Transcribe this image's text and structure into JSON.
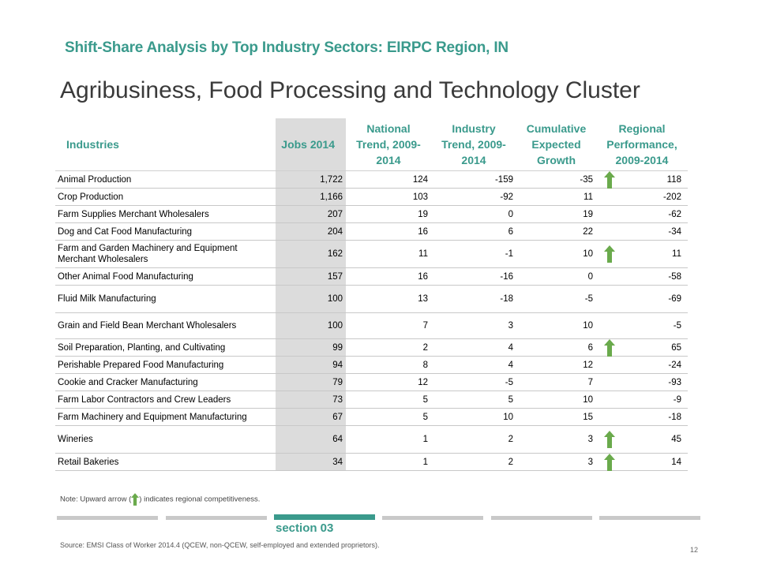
{
  "header": {
    "subtitle": "Shift-Share Analysis by Top Industry Sectors: EIRPC Region, IN",
    "title": "Agribusiness, Food Processing and Technology Cluster"
  },
  "table": {
    "columns": [
      "Industries",
      "Jobs 2014",
      "National Trend, 2009-2014",
      "Industry Trend, 2009-2014",
      "Cumulative Expected Growth",
      "Regional Performance, 2009-2014"
    ],
    "rows": [
      {
        "name": "Animal Production",
        "jobs": "1,722",
        "national": "124",
        "industry": "-159",
        "cumulative": "-35",
        "regional": "118",
        "up": true
      },
      {
        "name": "Crop Production",
        "jobs": "1,166",
        "national": "103",
        "industry": "-92",
        "cumulative": "11",
        "regional": "-202",
        "up": false
      },
      {
        "name": "Farm Supplies Merchant Wholesalers",
        "jobs": "207",
        "national": "19",
        "industry": "0",
        "cumulative": "19",
        "regional": "-62",
        "up": false
      },
      {
        "name": "Dog and Cat Food Manufacturing",
        "jobs": "204",
        "national": "16",
        "industry": "6",
        "cumulative": "22",
        "regional": "-34",
        "up": false
      },
      {
        "name": "Farm and Garden Machinery and Equipment Merchant Wholesalers",
        "jobs": "162",
        "national": "11",
        "industry": "-1",
        "cumulative": "10",
        "regional": "11",
        "up": true
      },
      {
        "name": "Other Animal Food Manufacturing",
        "jobs": "157",
        "national": "16",
        "industry": "-16",
        "cumulative": "0",
        "regional": "-58",
        "up": false
      },
      {
        "name": "Fluid Milk Manufacturing",
        "jobs": "100",
        "national": "13",
        "industry": "-18",
        "cumulative": "-5",
        "regional": "-69",
        "up": false
      },
      {
        "name": "Grain and Field Bean Merchant Wholesalers",
        "jobs": "100",
        "national": "7",
        "industry": "3",
        "cumulative": "10",
        "regional": "-5",
        "up": false
      },
      {
        "name": "Soil Preparation, Planting, and Cultivating",
        "jobs": "99",
        "national": "2",
        "industry": "4",
        "cumulative": "6",
        "regional": "65",
        "up": true
      },
      {
        "name": "Perishable Prepared Food Manufacturing",
        "jobs": "94",
        "national": "8",
        "industry": "4",
        "cumulative": "12",
        "regional": "-24",
        "up": false
      },
      {
        "name": "Cookie and Cracker Manufacturing",
        "jobs": "79",
        "national": "12",
        "industry": "-5",
        "cumulative": "7",
        "regional": "-93",
        "up": false
      },
      {
        "name": "Farm Labor Contractors and Crew Leaders",
        "jobs": "73",
        "national": "5",
        "industry": "5",
        "cumulative": "10",
        "regional": "-9",
        "up": false
      },
      {
        "name": "Farm Machinery and Equipment Manufacturing",
        "jobs": "67",
        "national": "5",
        "industry": "10",
        "cumulative": "15",
        "regional": "-18",
        "up": false
      },
      {
        "name": "Wineries",
        "jobs": "64",
        "national": "1",
        "industry": "2",
        "cumulative": "3",
        "regional": "45",
        "up": true
      },
      {
        "name": "Retail Bakeries",
        "jobs": "34",
        "national": "1",
        "industry": "2",
        "cumulative": "3",
        "regional": "14",
        "up": true
      }
    ]
  },
  "note": {
    "before": "Note: Upward arrow (",
    "after": ") indicates regional competitiveness."
  },
  "footer": {
    "section": "section 03",
    "source": "Source: EMSI Class of Worker 2014.4 (QCEW, non-QCEW, self-employed and extended proprietors).",
    "page": "12"
  },
  "colors": {
    "accent": "#3a9a8c",
    "arrow": "#6aaa4c",
    "jobs_column": "#dcdcdc"
  },
  "icons": {
    "up_arrow": "up-arrow-icon"
  }
}
